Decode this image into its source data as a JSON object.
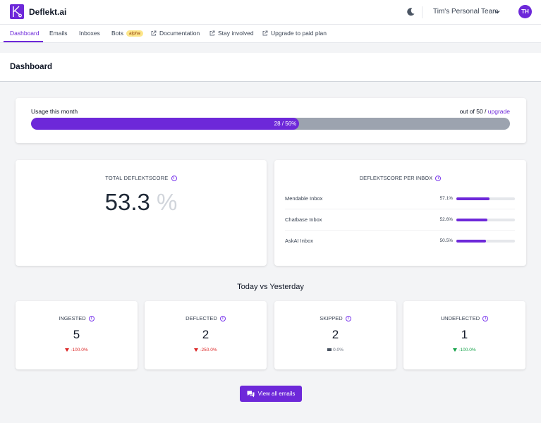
{
  "app": {
    "brand": "Deflekt.ai",
    "team": "Tim's Personal Team",
    "avatar_initials": "TH",
    "accent_color": "#6d28d9"
  },
  "nav": {
    "items": [
      {
        "label": "Dashboard",
        "active": true
      },
      {
        "label": "Emails"
      },
      {
        "label": "Inboxes"
      },
      {
        "label": "Bots",
        "badge": "alpha"
      },
      {
        "label": "Documentation",
        "icon": "external-link-icon"
      },
      {
        "label": "Stay involved",
        "icon": "external-link-icon"
      },
      {
        "label": "Upgrade to paid plan",
        "icon": "external-link-icon"
      }
    ]
  },
  "page": {
    "title": "Dashboard"
  },
  "usage": {
    "label": "Usage this month",
    "bar_text": "28 / 56%",
    "used": 28,
    "percent": 56,
    "limit_text": "out of 50 /",
    "upgrade_label": "upgrade"
  },
  "total_score": {
    "title": "TOTAL DEFLEKTSCORE",
    "value": "53.3",
    "unit": "%"
  },
  "per_inbox": {
    "title": "DEFLEKTSCORE PER INBOX",
    "rows": [
      {
        "name": "Mendable Inbox",
        "pct_label": "57.1%",
        "value": 57.1
      },
      {
        "name": "Chatbase Inbox",
        "pct_label": "52.6%",
        "value": 52.6
      },
      {
        "name": "AskAI Inbox",
        "pct_label": "50.5%",
        "value": 50.5
      }
    ]
  },
  "comparison": {
    "title": "Today vs Yesterday",
    "stats": [
      {
        "label": "INGESTED",
        "value": "5",
        "delta": "-100.0%",
        "trend": "down-bad"
      },
      {
        "label": "DEFLECTED",
        "value": "2",
        "delta": "-250.0%",
        "trend": "down-bad"
      },
      {
        "label": "SKIPPED",
        "value": "2",
        "delta": "0.0%",
        "trend": "flat"
      },
      {
        "label": "UNDEFLECTED",
        "value": "1",
        "delta": "-100.0%",
        "trend": "down-good"
      }
    ]
  },
  "actions": {
    "view_all_label": "View all emails"
  }
}
